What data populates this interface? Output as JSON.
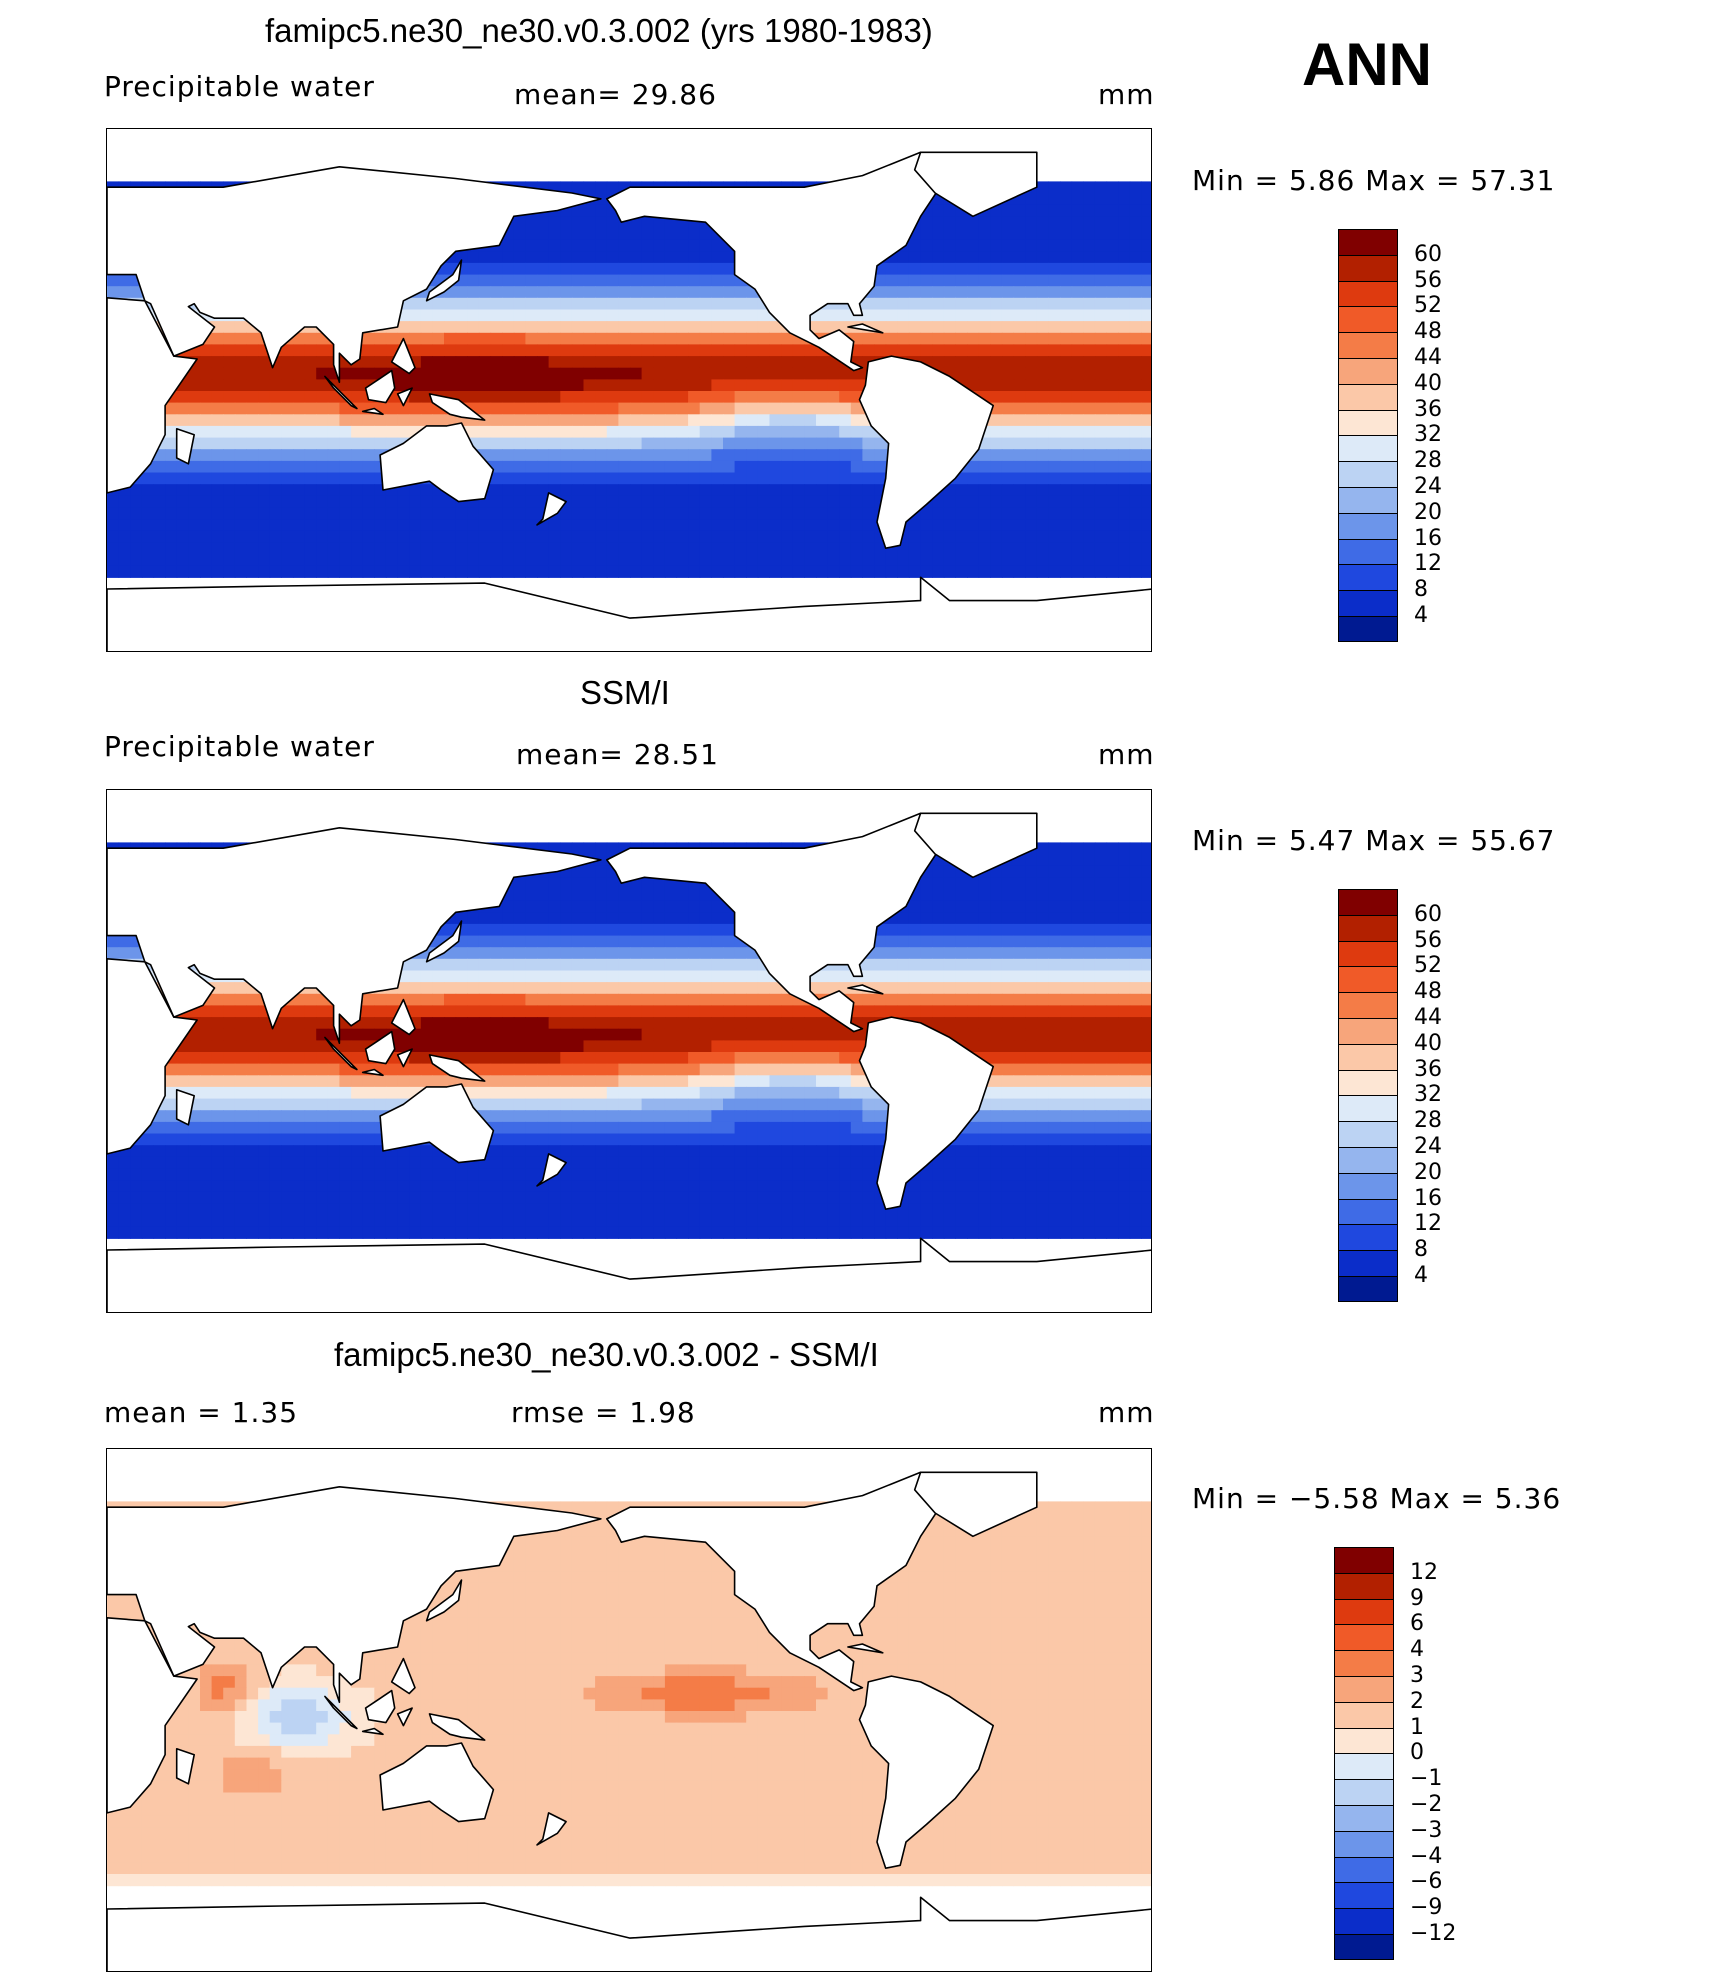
{
  "season": "ANN",
  "panels": [
    {
      "title": "famipc5.ne30_ne30.v0.3.002 (yrs 1980-1983)",
      "variable": "Precipitable water",
      "stat1": "mean=   29.86",
      "stat2": "",
      "units": "mm",
      "minmax": "Min =    5.86  Max =    57.31",
      "kind": "abs",
      "colorbar": {
        "colors": [
          "#800000",
          "#b22000",
          "#de3a0f",
          "#f05a28",
          "#f47c47",
          "#f7a57b",
          "#fbc8a8",
          "#fde6d4",
          "#ddeaf8",
          "#bcd3f3",
          "#95b5ee",
          "#6c95ea",
          "#3f6be6",
          "#1f48df",
          "#0b2dc9",
          "#001a91"
        ],
        "labels": [
          "60",
          "56",
          "52",
          "48",
          "44",
          "40",
          "36",
          "32",
          "28",
          "24",
          "20",
          "16",
          "12",
          "8",
          "4"
        ]
      }
    },
    {
      "title": "SSM/I",
      "variable": "Precipitable water",
      "stat1": "mean=   28.51",
      "stat2": "",
      "units": "mm",
      "minmax": "Min =    5.47  Max =    55.67",
      "kind": "abs",
      "colorbar": {
        "colors": [
          "#800000",
          "#b22000",
          "#de3a0f",
          "#f05a28",
          "#f47c47",
          "#f7a57b",
          "#fbc8a8",
          "#fde6d4",
          "#ddeaf8",
          "#bcd3f3",
          "#95b5ee",
          "#6c95ea",
          "#3f6be6",
          "#1f48df",
          "#0b2dc9",
          "#001a91"
        ],
        "labels": [
          "60",
          "56",
          "52",
          "48",
          "44",
          "40",
          "36",
          "32",
          "28",
          "24",
          "20",
          "16",
          "12",
          "8",
          "4"
        ]
      }
    },
    {
      "title": "famipc5.ne30_ne30.v0.3.002 - SSM/I",
      "variable": "mean =     1.35",
      "stat1": "rmse =     1.98",
      "stat2": "",
      "units": "mm",
      "minmax": "Min =   −5.58  Max =      5.36",
      "kind": "diff",
      "colorbar": {
        "colors": [
          "#800000",
          "#b22000",
          "#de3a0f",
          "#f05a28",
          "#f47c47",
          "#f7a57b",
          "#fbc8a8",
          "#fde6d4",
          "#ddeaf8",
          "#bcd3f3",
          "#95b5ee",
          "#6c95ea",
          "#3f6be6",
          "#1f48df",
          "#0b2dc9",
          "#001a91"
        ],
        "labels": [
          "12",
          "9",
          "6",
          "4",
          "3",
          "2",
          "1",
          "0",
          "−1",
          "−2",
          "−3",
          "−4",
          "−6",
          "−9",
          "−12"
        ]
      }
    }
  ]
}
